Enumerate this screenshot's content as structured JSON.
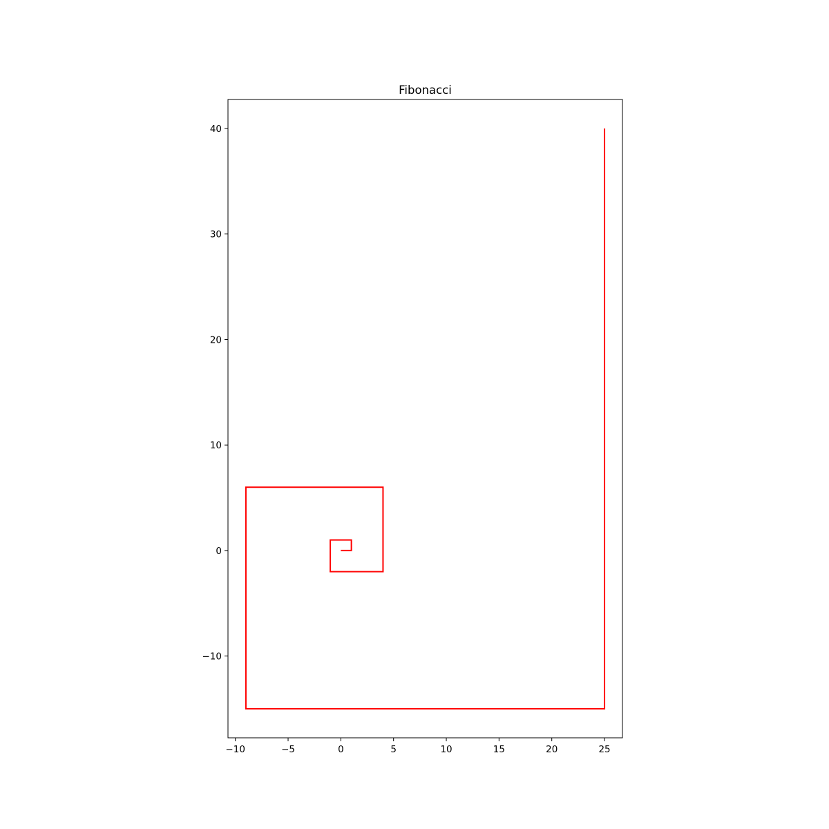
{
  "chart_data": {
    "type": "line",
    "title": "Fibonacci",
    "xlabel": "",
    "ylabel": "",
    "xlim": [
      -10.7,
      26.7
    ],
    "ylim": [
      -17.75,
      42.75
    ],
    "xticks": [
      -10,
      -5,
      0,
      5,
      10,
      15,
      20,
      25
    ],
    "xtick_labels": [
      "−10",
      "−5",
      "0",
      "5",
      "10",
      "15",
      "20",
      "25"
    ],
    "yticks": [
      -10,
      0,
      10,
      20,
      30,
      40
    ],
    "ytick_labels": [
      "−10",
      "0",
      "10",
      "20",
      "30",
      "40"
    ],
    "grid": false,
    "legend": false,
    "series": [
      {
        "color": "#ff0000",
        "x": [
          0,
          1,
          1,
          -1,
          -1,
          4,
          4,
          -9,
          -9,
          25,
          25
        ],
        "y": [
          0,
          0,
          1,
          1,
          -2,
          -2,
          6,
          6,
          -15,
          -15,
          40
        ]
      }
    ]
  }
}
